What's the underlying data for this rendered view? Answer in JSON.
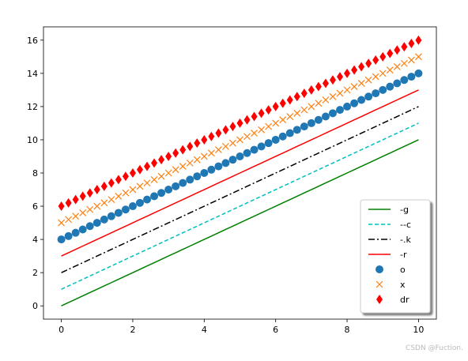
{
  "chart_data": {
    "type": "line",
    "x": [
      0,
      0.2,
      0.4,
      0.6,
      0.8,
      1,
      1.2,
      1.4,
      1.6,
      1.8,
      2,
      2.2,
      2.4,
      2.6,
      2.8,
      3,
      3.2,
      3.4,
      3.6,
      3.8,
      4,
      4.2,
      4.4,
      4.6,
      4.8,
      5,
      5.2,
      5.4,
      5.6,
      5.8,
      6,
      6.2,
      6.4,
      6.6,
      6.8,
      7,
      7.2,
      7.4,
      7.6,
      7.8,
      8,
      8.2,
      8.4,
      8.6,
      8.8,
      9,
      9.2,
      9.4,
      9.6,
      9.8,
      10
    ],
    "series": [
      {
        "name": "-g",
        "color": "#008000",
        "linestyle": "solid",
        "marker": null,
        "values": [
          0,
          0.2,
          0.4,
          0.6,
          0.8,
          1,
          1.2,
          1.4,
          1.6,
          1.8,
          2,
          2.2,
          2.4,
          2.6,
          2.8,
          3,
          3.2,
          3.4,
          3.6,
          3.8,
          4,
          4.2,
          4.4,
          4.6,
          4.8,
          5,
          5.2,
          5.4,
          5.6,
          5.8,
          6,
          6.2,
          6.4,
          6.6,
          6.8,
          7,
          7.2,
          7.4,
          7.6,
          7.8,
          8,
          8.2,
          8.4,
          8.6,
          8.8,
          9,
          9.2,
          9.4,
          9.6,
          9.8,
          10
        ]
      },
      {
        "name": "--c",
        "color": "#00bfbf",
        "linestyle": "dashed",
        "marker": null,
        "values": [
          1,
          1.2,
          1.4,
          1.6,
          1.8,
          2,
          2.2,
          2.4,
          2.6,
          2.8,
          3,
          3.2,
          3.4,
          3.6,
          3.8,
          4,
          4.2,
          4.4,
          4.6,
          4.8,
          5,
          5.2,
          5.4,
          5.6,
          5.8,
          6,
          6.2,
          6.4,
          6.6,
          6.8,
          7,
          7.2,
          7.4,
          7.6,
          7.8,
          8,
          8.2,
          8.4,
          8.6,
          8.8,
          9,
          9.2,
          9.4,
          9.6,
          9.8,
          10,
          10.2,
          10.4,
          10.6,
          10.8,
          11
        ]
      },
      {
        "name": "-.k",
        "color": "#000000",
        "linestyle": "dashdot",
        "marker": null,
        "values": [
          2,
          2.2,
          2.4,
          2.6,
          2.8,
          3,
          3.2,
          3.4,
          3.6,
          3.8,
          4,
          4.2,
          4.4,
          4.6,
          4.8,
          5,
          5.2,
          5.4,
          5.6,
          5.8,
          6,
          6.2,
          6.4,
          6.6,
          6.8,
          7,
          7.2,
          7.4,
          7.6,
          7.8,
          8,
          8.2,
          8.4,
          8.6,
          8.8,
          9,
          9.2,
          9.4,
          9.6,
          9.8,
          10,
          10.2,
          10.4,
          10.6,
          10.8,
          11,
          11.2,
          11.4,
          11.6,
          11.8,
          12
        ]
      },
      {
        "name": "-r",
        "color": "#ff0000",
        "linestyle": "solid",
        "marker": null,
        "values": [
          3,
          3.2,
          3.4,
          3.6,
          3.8,
          4,
          4.2,
          4.4,
          4.6,
          4.8,
          5,
          5.2,
          5.4,
          5.6,
          5.8,
          6,
          6.2,
          6.4,
          6.6,
          6.8,
          7,
          7.2,
          7.4,
          7.6,
          7.8,
          8,
          8.2,
          8.4,
          8.6,
          8.8,
          9,
          9.2,
          9.4,
          9.6,
          9.8,
          10,
          10.2,
          10.4,
          10.6,
          10.8,
          11,
          11.2,
          11.4,
          11.6,
          11.8,
          12,
          12.2,
          12.4,
          12.6,
          12.8,
          13
        ]
      },
      {
        "name": "o",
        "color": "#1f77b4",
        "linestyle": null,
        "marker": "circle",
        "values": [
          4,
          4.2,
          4.4,
          4.6,
          4.8,
          5,
          5.2,
          5.4,
          5.6,
          5.8,
          6,
          6.2,
          6.4,
          6.6,
          6.8,
          7,
          7.2,
          7.4,
          7.6,
          7.8,
          8,
          8.2,
          8.4,
          8.6,
          8.8,
          9,
          9.2,
          9.4,
          9.6,
          9.8,
          10,
          10.2,
          10.4,
          10.6,
          10.8,
          11,
          11.2,
          11.4,
          11.6,
          11.8,
          12,
          12.2,
          12.4,
          12.6,
          12.8,
          13,
          13.2,
          13.4,
          13.6,
          13.8,
          14
        ]
      },
      {
        "name": "x",
        "color": "#ff7f0e",
        "linestyle": null,
        "marker": "x",
        "values": [
          5,
          5.2,
          5.4,
          5.6,
          5.8,
          6,
          6.2,
          6.4,
          6.6,
          6.8,
          7,
          7.2,
          7.4,
          7.6,
          7.8,
          8,
          8.2,
          8.4,
          8.6,
          8.8,
          9,
          9.2,
          9.4,
          9.6,
          9.8,
          10,
          10.2,
          10.4,
          10.6,
          10.8,
          11,
          11.2,
          11.4,
          11.6,
          11.8,
          12,
          12.2,
          12.4,
          12.6,
          12.8,
          13,
          13.2,
          13.4,
          13.6,
          13.8,
          14,
          14.2,
          14.4,
          14.6,
          14.8,
          15
        ]
      },
      {
        "name": "dr",
        "color": "#ff0000",
        "linestyle": null,
        "marker": "diamond",
        "values": [
          6,
          6.2,
          6.4,
          6.6,
          6.8,
          7,
          7.2,
          7.4,
          7.6,
          7.8,
          8,
          8.2,
          8.4,
          8.6,
          8.8,
          9,
          9.2,
          9.4,
          9.6,
          9.8,
          10,
          10.2,
          10.4,
          10.6,
          10.8,
          11,
          11.2,
          11.4,
          11.6,
          11.8,
          12,
          12.2,
          12.4,
          12.6,
          12.8,
          13,
          13.2,
          13.4,
          13.6,
          13.8,
          14,
          14.2,
          14.4,
          14.6,
          14.8,
          15,
          15.2,
          15.4,
          15.6,
          15.8,
          16
        ]
      }
    ],
    "xlim": [
      -0.5,
      10.5
    ],
    "ylim": [
      -0.8,
      16.8
    ],
    "xticks": [
      0,
      2,
      4,
      6,
      8,
      10
    ],
    "yticks": [
      0,
      2,
      4,
      6,
      8,
      10,
      12,
      14,
      16
    ],
    "legend": "lower right",
    "watermark": "CSDN @Fuction."
  }
}
